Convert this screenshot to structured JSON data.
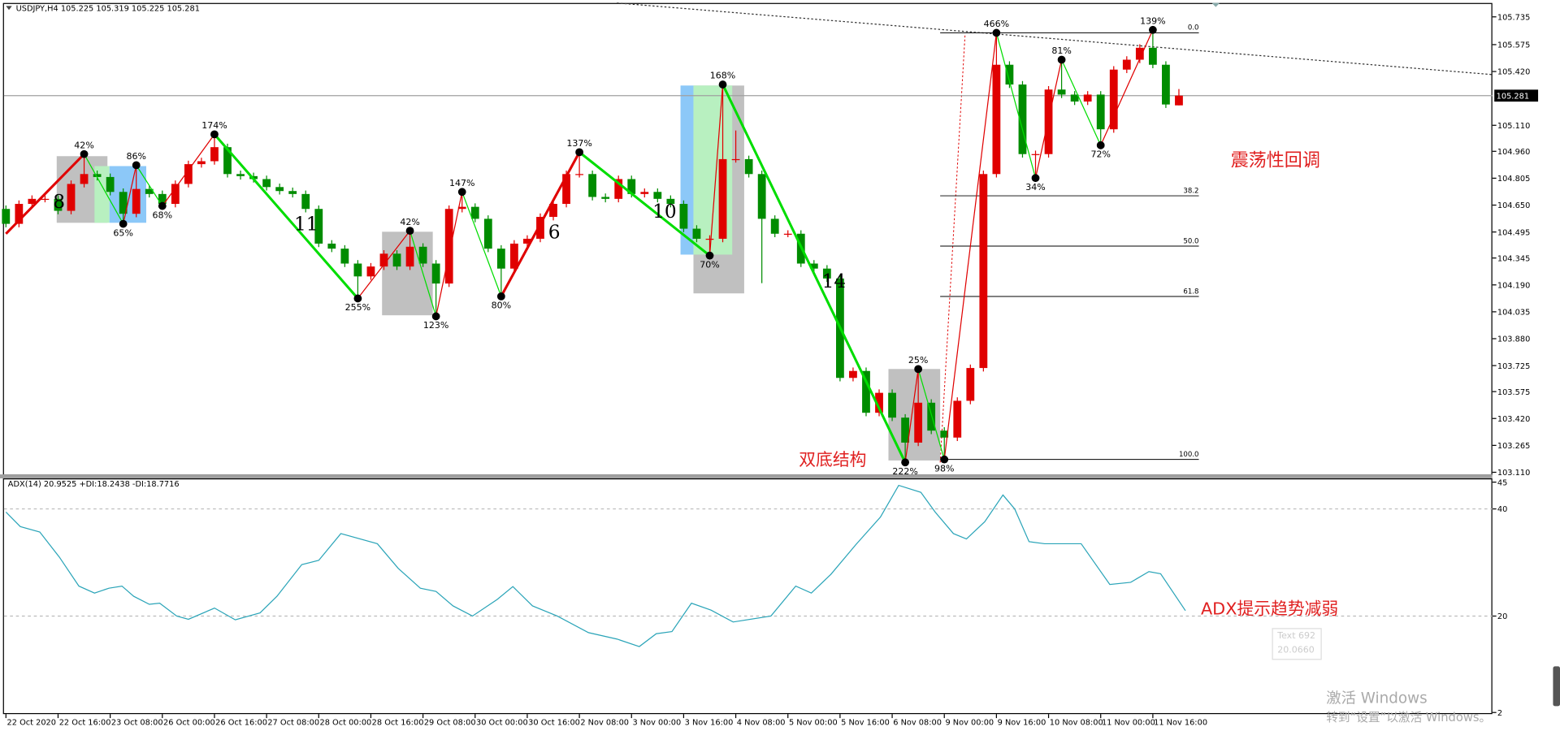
{
  "chart_data": [
    {
      "type": "candlestick",
      "title": "USDJPY,H4  105.225 105.319 105.225 105.281",
      "up_color": "#e00000",
      "down_color": "#008c00",
      "zigzag_up_color": "#e00000",
      "zigzag_down_color": "#00dd00",
      "xlim": [
        -0.15,
        114.05
      ],
      "xticks": [
        {
          "value": 0,
          "label": "22 Oct 2020"
        },
        {
          "value": 4,
          "label": "22 Oct 16:00"
        },
        {
          "value": 8,
          "label": "23 Oct 08:00"
        },
        {
          "value": 12,
          "label": "26 Oct 00:00"
        },
        {
          "value": 16,
          "label": "26 Oct 16:00"
        },
        {
          "value": 20,
          "label": "27 Oct 08:00"
        },
        {
          "value": 24,
          "label": "28 Oct 00:00"
        },
        {
          "value": 28,
          "label": "28 Oct 16:00"
        },
        {
          "value": 32,
          "label": "29 Oct 08:00"
        },
        {
          "value": 36,
          "label": "30 Oct 00:00"
        },
        {
          "value": 40,
          "label": "30 Oct 16:00"
        },
        {
          "value": 44,
          "label": "2 Nov 08:00"
        },
        {
          "value": 48,
          "label": "3 Nov 00:00"
        },
        {
          "value": 52,
          "label": "3 Nov 16:00"
        },
        {
          "value": 56,
          "label": "4 Nov 08:00"
        },
        {
          "value": 60,
          "label": "5 Nov 00:00"
        },
        {
          "value": 64,
          "label": "5 Nov 16:00"
        },
        {
          "value": 68,
          "label": "6 Nov 08:00"
        },
        {
          "value": 72,
          "label": "9 Nov 00:00"
        },
        {
          "value": 76,
          "label": "9 Nov 16:00"
        },
        {
          "value": 80,
          "label": "10 Nov 08:00"
        },
        {
          "value": 84,
          "label": "11 Nov 00:00"
        },
        {
          "value": 88,
          "label": "11 Nov 16:00"
        }
      ],
      "ylim": [
        103.092,
        105.815
      ],
      "yticks": [
        105.735,
        105.575,
        {
          "value": 105.42,
          "label": "105.420"
        },
        {
          "value": 105.11,
          "label": "105.110"
        },
        {
          "value": 104.96,
          "label": "104.960"
        },
        104.805,
        {
          "value": 104.65,
          "label": "104.650"
        },
        104.495,
        104.345,
        {
          "value": 104.19,
          "label": "104.190"
        },
        104.035,
        {
          "value": 103.88,
          "label": "103.880"
        },
        103.725,
        103.575,
        {
          "value": 103.42,
          "label": "103.420"
        },
        103.265,
        {
          "value": 103.11,
          "label": "103.110"
        }
      ],
      "last": 105.281,
      "ohlc": [
        [
          104.628,
          104.648,
          104.522,
          104.542
        ],
        [
          104.542,
          104.677,
          104.522,
          104.657
        ],
        [
          104.657,
          104.706,
          104.637,
          104.686
        ],
        [
          104.686,
          104.706,
          104.666,
          104.686
        ],
        [
          104.686,
          104.706,
          104.597,
          104.617
        ],
        [
          104.617,
          104.792,
          104.597,
          104.772
        ],
        [
          104.772,
          104.944,
          104.752,
          104.829
        ],
        [
          104.829,
          104.849,
          104.792,
          104.812
        ],
        [
          104.812,
          104.832,
          104.706,
          104.726
        ],
        [
          104.726,
          104.746,
          104.542,
          104.6
        ],
        [
          104.6,
          104.88,
          104.58,
          104.743
        ],
        [
          104.743,
          104.763,
          104.694,
          104.714
        ],
        [
          104.714,
          104.734,
          104.645,
          104.657
        ],
        [
          104.657,
          104.792,
          104.637,
          104.772
        ],
        [
          104.772,
          104.906,
          104.752,
          104.886
        ],
        [
          104.886,
          104.923,
          104.866,
          104.903
        ],
        [
          104.903,
          105.058,
          104.883,
          104.984
        ],
        [
          104.984,
          105.004,
          104.809,
          104.829
        ],
        [
          104.829,
          104.849,
          104.797,
          104.817
        ],
        [
          104.817,
          104.837,
          104.78,
          104.8
        ],
        [
          104.8,
          104.82,
          104.734,
          104.754
        ],
        [
          104.754,
          104.774,
          104.711,
          104.731
        ],
        [
          104.731,
          104.751,
          104.694,
          104.714
        ],
        [
          104.714,
          104.734,
          104.608,
          104.628
        ],
        [
          104.628,
          104.648,
          104.408,
          104.428
        ],
        [
          104.428,
          104.448,
          104.379,
          104.399
        ],
        [
          104.399,
          104.419,
          104.293,
          104.313
        ],
        [
          104.313,
          104.333,
          104.112,
          104.239
        ],
        [
          104.239,
          104.316,
          104.219,
          104.296
        ],
        [
          104.296,
          104.39,
          104.276,
          104.37
        ],
        [
          104.37,
          104.39,
          104.276,
          104.296
        ],
        [
          104.296,
          104.502,
          104.276,
          104.41
        ],
        [
          104.41,
          104.43,
          104.293,
          104.313
        ],
        [
          104.313,
          104.333,
          104.009,
          104.198
        ],
        [
          104.198,
          104.648,
          104.178,
          104.628
        ],
        [
          104.628,
          104.726,
          104.608,
          104.64
        ],
        [
          104.64,
          104.66,
          104.551,
          104.571
        ],
        [
          104.571,
          104.591,
          104.379,
          104.399
        ],
        [
          104.399,
          104.419,
          104.124,
          104.284
        ],
        [
          104.284,
          104.448,
          104.264,
          104.428
        ],
        [
          104.428,
          104.476,
          104.408,
          104.456
        ],
        [
          104.456,
          104.602,
          104.436,
          104.582
        ],
        [
          104.582,
          104.677,
          104.562,
          104.657
        ],
        [
          104.657,
          104.849,
          104.637,
          104.829
        ],
        [
          104.829,
          104.955,
          104.809,
          104.829
        ],
        [
          104.829,
          104.849,
          104.677,
          104.697
        ],
        [
          104.697,
          104.717,
          104.666,
          104.686
        ],
        [
          104.686,
          104.82,
          104.666,
          104.8
        ],
        [
          104.8,
          104.82,
          104.694,
          104.714
        ],
        [
          104.714,
          104.746,
          104.694,
          104.726
        ],
        [
          104.726,
          104.746,
          104.666,
          104.686
        ],
        [
          104.686,
          104.706,
          104.637,
          104.657
        ],
        [
          104.657,
          104.677,
          104.494,
          104.514
        ],
        [
          104.514,
          104.534,
          104.436,
          104.456
        ],
        [
          104.456,
          104.476,
          104.359,
          104.456
        ],
        [
          104.456,
          105.345,
          104.436,
          104.915
        ],
        [
          104.915,
          105.08,
          104.895,
          104.915
        ],
        [
          104.915,
          104.935,
          104.809,
          104.829
        ],
        [
          104.829,
          104.849,
          104.2,
          104.571
        ],
        [
          104.571,
          104.591,
          104.465,
          104.485
        ],
        [
          104.485,
          104.505,
          104.465,
          104.485
        ],
        [
          104.485,
          104.505,
          104.293,
          104.313
        ],
        [
          104.313,
          104.333,
          104.264,
          104.284
        ],
        [
          104.284,
          104.304,
          104.207,
          104.227
        ],
        [
          104.227,
          104.247,
          103.634,
          103.654
        ],
        [
          103.654,
          103.714,
          103.634,
          103.694
        ],
        [
          103.694,
          103.714,
          103.433,
          103.453
        ],
        [
          103.453,
          103.588,
          103.433,
          103.568
        ],
        [
          103.568,
          103.588,
          103.405,
          103.425
        ],
        [
          103.425,
          103.445,
          103.167,
          103.281
        ],
        [
          103.281,
          103.705,
          103.261,
          103.511
        ],
        [
          103.511,
          103.531,
          103.33,
          103.35
        ],
        [
          103.35,
          103.37,
          103.184,
          103.31
        ],
        [
          103.31,
          103.542,
          103.29,
          103.522
        ],
        [
          103.522,
          103.731,
          103.502,
          103.711
        ],
        [
          103.711,
          104.849,
          103.691,
          104.829
        ],
        [
          104.829,
          105.643,
          104.809,
          105.459
        ],
        [
          105.459,
          105.479,
          105.325,
          105.345
        ],
        [
          105.345,
          105.365,
          104.924,
          104.944
        ],
        [
          104.944,
          104.964,
          104.806,
          104.944
        ],
        [
          104.944,
          105.336,
          104.924,
          105.316
        ],
        [
          105.316,
          105.488,
          105.267,
          105.287
        ],
        [
          105.287,
          105.307,
          105.227,
          105.247
        ],
        [
          105.247,
          105.307,
          105.227,
          105.287
        ],
        [
          105.287,
          105.307,
          104.995,
          105.087
        ],
        [
          105.087,
          105.451,
          105.067,
          105.431
        ],
        [
          105.431,
          105.508,
          105.411,
          105.488
        ],
        [
          105.488,
          105.577,
          105.468,
          105.557
        ],
        [
          105.557,
          105.66,
          105.439,
          105.459
        ],
        [
          105.459,
          105.479,
          105.21,
          105.23
        ],
        [
          105.225,
          105.319,
          105.225,
          105.281
        ]
      ],
      "pivots": [
        {
          "x": 0,
          "y": 104.485
        },
        {
          "x": 6,
          "y": 104.944,
          "label": "42%",
          "wave": "8"
        },
        {
          "x": 9,
          "y": 104.542,
          "label": "65%"
        },
        {
          "x": 10,
          "y": 104.88,
          "label": "86%"
        },
        {
          "x": 12,
          "y": 104.645,
          "label": "68%"
        },
        {
          "x": 16,
          "y": 105.058,
          "label": "174%"
        },
        {
          "x": 27,
          "y": 104.112,
          "label": "255%",
          "wave": "11"
        },
        {
          "x": 31,
          "y": 104.502,
          "label": "42%"
        },
        {
          "x": 33,
          "y": 104.009,
          "label": "123%"
        },
        {
          "x": 35,
          "y": 104.726,
          "label": "147%"
        },
        {
          "x": 38,
          "y": 104.124,
          "label": "80%"
        },
        {
          "x": 44,
          "y": 104.955,
          "label": "137%",
          "wave": "6"
        },
        {
          "x": 54,
          "y": 104.359,
          "label": "70%",
          "wave": "10"
        },
        {
          "x": 55,
          "y": 105.345,
          "label": "168%"
        },
        {
          "x": 69,
          "y": 103.167,
          "label": "222%",
          "wave": "14"
        },
        {
          "x": 70,
          "y": 103.705,
          "label": "25%"
        },
        {
          "x": 72,
          "y": 103.184,
          "label": "98%"
        },
        {
          "x": 76,
          "y": 105.643,
          "label": "466%"
        },
        {
          "x": 79,
          "y": 104.806,
          "label": "34%"
        },
        {
          "x": 81,
          "y": 105.488,
          "label": "81%"
        },
        {
          "x": 84,
          "y": 104.995,
          "label": "72%"
        },
        {
          "x": 88,
          "y": 105.66,
          "label": "139%"
        }
      ],
      "fib": {
        "low": 103.184,
        "high": 105.643,
        "levels": [
          {
            "value": 0,
            "label": "0.0"
          },
          38.2,
          {
            "value": 50,
            "label": "50.0"
          },
          61.8,
          {
            "value": 100,
            "label": "100.0"
          }
        ]
      },
      "annotations": [
        "震荡性回调",
        "双底结构"
      ]
    },
    {
      "type": "line",
      "title": "ADX(14) 20.9525 +DI:18.2438 -DI:18.7716",
      "color": "#2aa4b8",
      "x": [
        0,
        1.1,
        2.6,
        4.1,
        5.6,
        6.8,
        7.9,
        8.9,
        9.8,
        11.0,
        11.8,
        13.1,
        14.0,
        16.0,
        17.6,
        19.5,
        20.8,
        22.7,
        24.0,
        25.7,
        28.5,
        30.1,
        31.8,
        33.0,
        34.3,
        35.8,
        37.7,
        38.9,
        40.4,
        42.3,
        44.7,
        46.9,
        48.6,
        49.9,
        51.1,
        52.6,
        54.1,
        55.8,
        58.7,
        60.6,
        61.8,
        63.3,
        65.2,
        67.1,
        68.5,
        70.2,
        71.3,
        72.7,
        73.7,
        75.1,
        76.5,
        77.4,
        78.5,
        79.7,
        82.5,
        84.7,
        86.3,
        87.7,
        88.6,
        90.5
      ],
      "values": [
        39.4,
        36.7,
        35.7,
        31,
        25.6,
        24.3,
        25.2,
        25.6,
        23.7,
        22.2,
        22.4,
        20,
        19.4,
        21.5,
        19.3,
        20.6,
        23.7,
        29.6,
        30.4,
        35.4,
        33.5,
        28.9,
        25.2,
        24.6,
        21.9,
        20,
        23.1,
        25.5,
        21.9,
        20,
        16.9,
        15.7,
        14.3,
        16.7,
        17.1,
        22.4,
        21.1,
        18.9,
        20,
        25.6,
        24.3,
        27.8,
        33.3,
        38.5,
        44.4,
        43.1,
        39.4,
        35.4,
        34.4,
        37.6,
        42.6,
        40,
        33.9,
        33.5,
        33.5,
        25.9,
        26.3,
        28.3,
        27.9,
        21.0
      ],
      "ylim": [
        1.7,
        45.7
      ],
      "yticks": [
        45,
        40,
        20,
        2
      ],
      "level_lines": [
        40,
        20
      ],
      "annotation": "ADX提示趋势减弱"
    }
  ],
  "overlay": {
    "tooltip": [
      "Text 692",
      "20.0660"
    ],
    "watermark": [
      "激活 Windows",
      "转到“设置”以激活 Windows。"
    ]
  }
}
